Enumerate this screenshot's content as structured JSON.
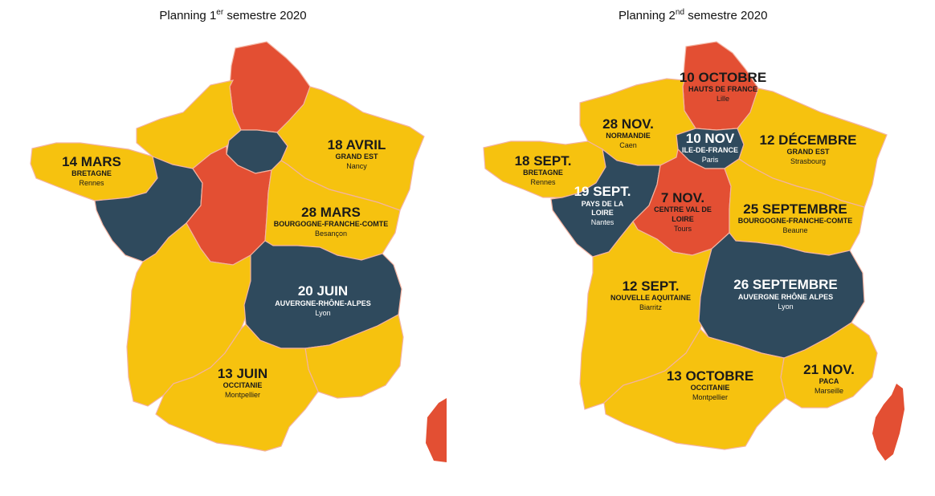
{
  "colors": {
    "yellow": "#f6c20f",
    "red": "#e34f33",
    "blue": "#2f4a5d",
    "border": "#f3b3a1"
  },
  "panel1": {
    "title_prefix": "Planning 1",
    "title_sup": "er",
    "title_suffix": " semestre 2020",
    "labels": {
      "bretagne": {
        "date": "14 MARS",
        "region": "BRETAGNE",
        "city": "Rennes"
      },
      "grand_est": {
        "date": "18 AVRIL",
        "region": "GRAND EST",
        "city": "Nancy"
      },
      "bfc": {
        "date": "28 MARS",
        "region": "BOURGOGNE-FRANCHE-COMTE",
        "city": "Besançon"
      },
      "ara": {
        "date": "20 JUIN",
        "region": "AUVERGNE-RHÔNE-ALPES",
        "city": "Lyon"
      },
      "occitanie": {
        "date": "13 JUIN",
        "region": "OCCITANIE",
        "city": "Montpellier"
      }
    }
  },
  "panel2": {
    "title_prefix": "Planning 2",
    "title_sup": "nd",
    "title_suffix": " semestre 2020",
    "labels": {
      "hdf": {
        "date": "10 OCTOBRE",
        "region": "HAUTS DE FRANCE",
        "city": "Lille"
      },
      "normandie": {
        "date": "28 NOV.",
        "region": "NORMANDIE",
        "city": "Caen"
      },
      "idf": {
        "date": "10 NOV",
        "region": "ILE-DE-FRANCE",
        "city": "Paris"
      },
      "grand_est": {
        "date": "12 DÉCEMBRE",
        "region": "GRAND EST",
        "city": "Strasbourg"
      },
      "bretagne": {
        "date": "18 SEPT.",
        "region": "BRETAGNE",
        "city": "Rennes"
      },
      "pdl": {
        "date": "19 SEPT.",
        "region1": "PAYS DE LA",
        "region2": "LOIRE",
        "city": "Nantes"
      },
      "cvl": {
        "date": "7 NOV.",
        "region1": "CENTRE VAL DE",
        "region2": "LOIRE",
        "city": "Tours"
      },
      "bfc": {
        "date": "25 SEPTEMBRE",
        "region": "BOURGOGNE-FRANCHE-COMTE",
        "city": "Beaune"
      },
      "na": {
        "date": "12 SEPT.",
        "region": "NOUVELLE AQUITAINE",
        "city": "Biarritz"
      },
      "ara": {
        "date": "26 SEPTEMBRE",
        "region": "AUVERGNE RHÔNE ALPES",
        "city": "Lyon"
      },
      "occitanie": {
        "date": "13 OCTOBRE",
        "region": "OCCITANIE",
        "city": "Montpellier"
      },
      "paca": {
        "date": "21 NOV.",
        "region": "PACA",
        "city": "Marseille"
      }
    }
  }
}
